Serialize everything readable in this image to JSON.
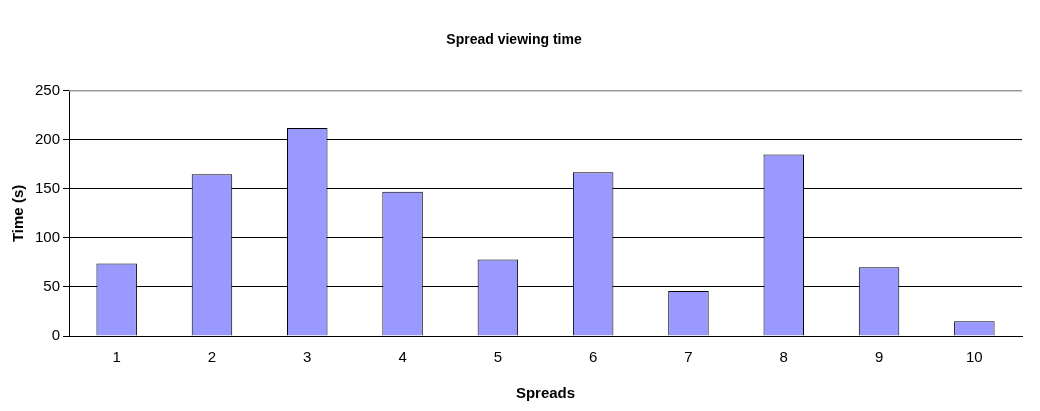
{
  "chart_data": {
    "type": "bar",
    "title": "Spread viewing time",
    "xlabel": "Spreads",
    "ylabel": "Time (s)",
    "categories": [
      "1",
      "2",
      "3",
      "4",
      "5",
      "6",
      "7",
      "8",
      "9",
      "10"
    ],
    "values": [
      74,
      165,
      212,
      147,
      78,
      167,
      46,
      185,
      70,
      15
    ],
    "color": "#9999ff",
    "ylim": [
      0,
      250
    ],
    "yticks": [
      0,
      50,
      100,
      150,
      200,
      250
    ],
    "grid": "y",
    "legend": false
  }
}
